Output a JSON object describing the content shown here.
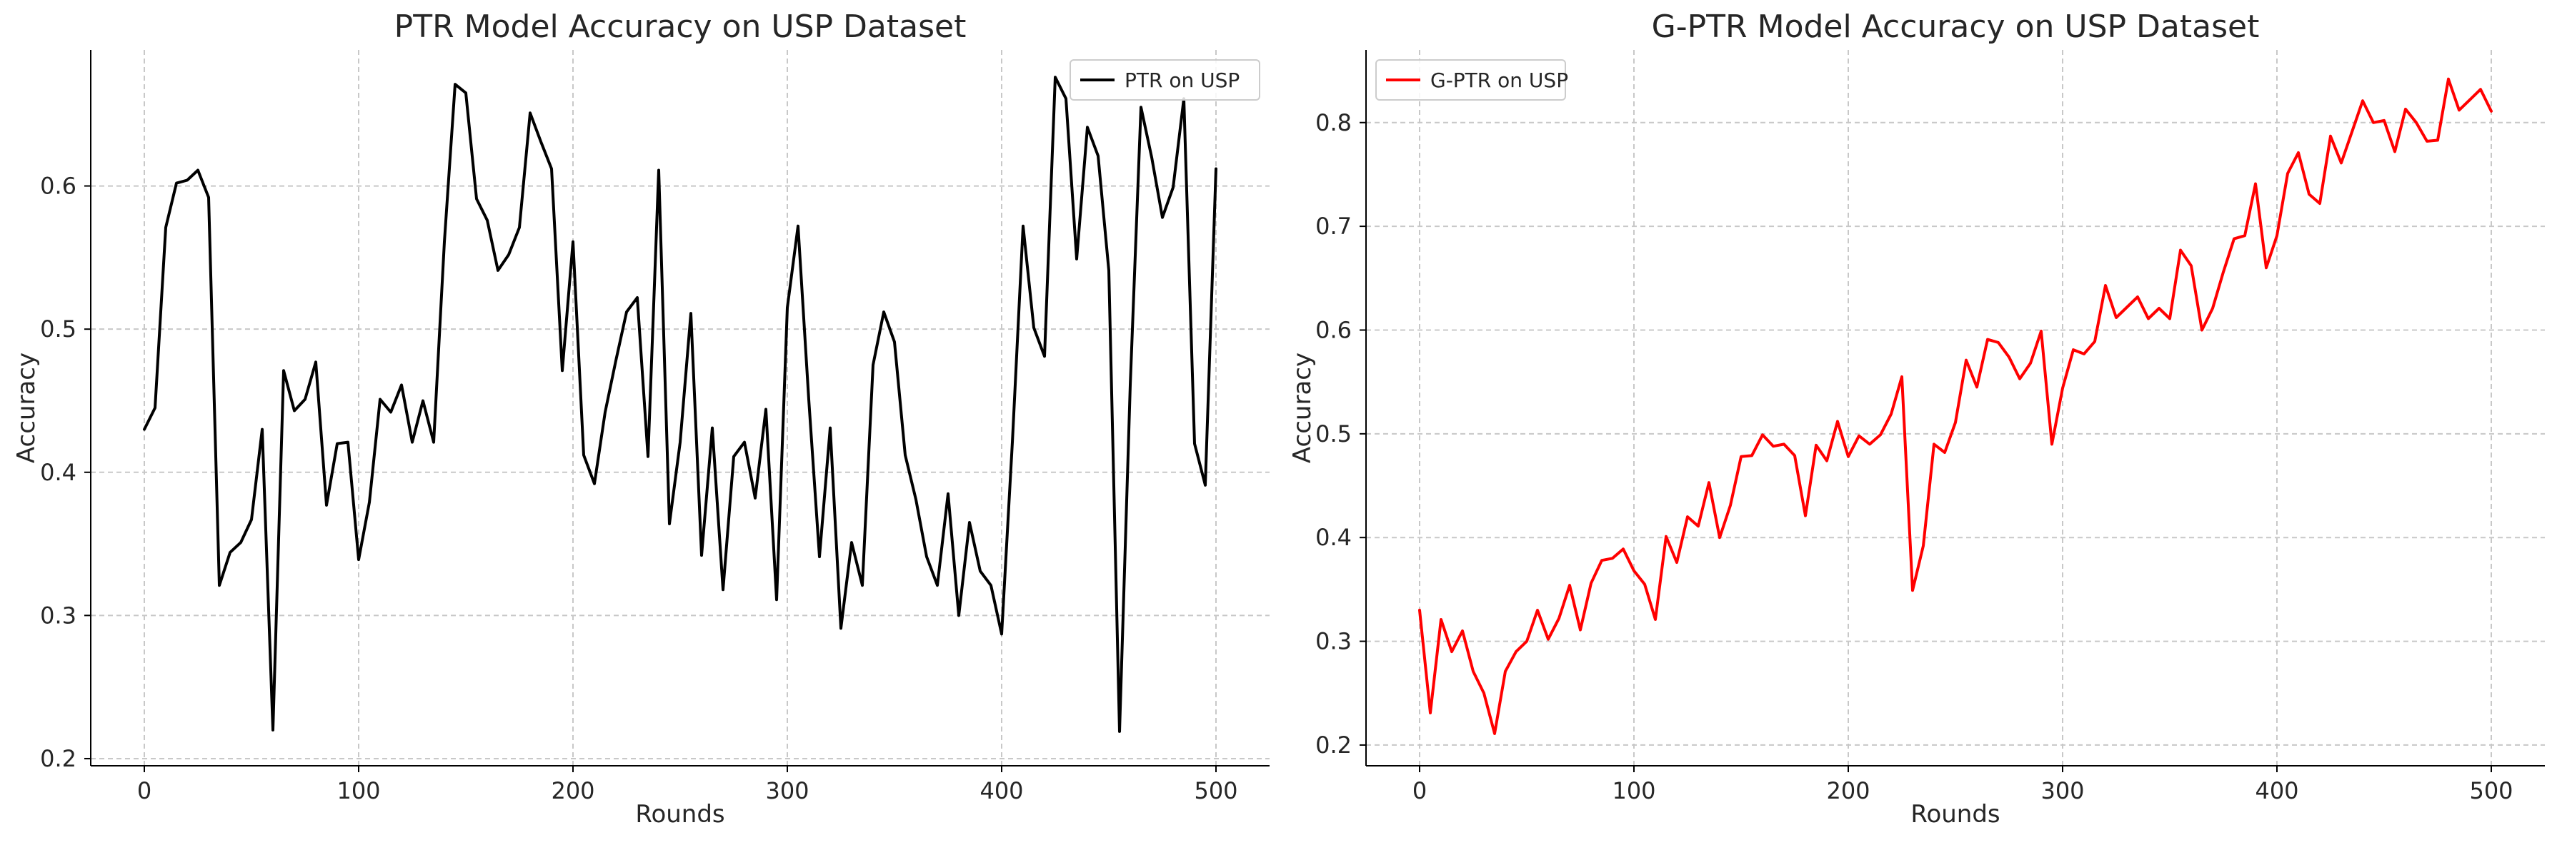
{
  "chart_data": [
    {
      "type": "line",
      "title": "PTR Model Accuracy on USP Dataset",
      "xlabel": "Rounds",
      "ylabel": "Accuracy",
      "xlim": [
        -25,
        525
      ],
      "ylim": [
        0.195,
        0.695
      ],
      "xticks": [
        0,
        100,
        200,
        300,
        400,
        500
      ],
      "yticks": [
        0.2,
        0.3,
        0.4,
        0.5,
        0.6
      ],
      "ytick_labels": [
        "0.2",
        "0.3",
        "0.4",
        "0.5",
        "0.6"
      ],
      "grid": true,
      "legend": "top-right",
      "series": [
        {
          "name": "PTR on USP",
          "color": "#000000",
          "x": [
            0,
            5,
            10,
            15,
            20,
            25,
            30,
            35,
            40,
            45,
            50,
            55,
            60,
            65,
            70,
            75,
            80,
            85,
            90,
            95,
            100,
            105,
            110,
            115,
            120,
            125,
            130,
            135,
            140,
            145,
            150,
            155,
            160,
            165,
            170,
            175,
            180,
            185,
            190,
            195,
            200,
            205,
            210,
            215,
            220,
            225,
            230,
            235,
            240,
            245,
            250,
            255,
            260,
            265,
            270,
            275,
            280,
            285,
            290,
            295,
            300,
            305,
            310,
            315,
            320,
            325,
            330,
            335,
            340,
            345,
            350,
            355,
            360,
            365,
            370,
            375,
            380,
            385,
            390,
            395,
            400,
            405,
            410,
            415,
            420,
            425,
            430,
            435,
            440,
            445,
            450,
            455,
            460,
            465,
            470,
            475,
            480,
            485,
            490,
            495,
            500
          ],
          "y": [
            0.43,
            0.445,
            0.571,
            0.602,
            0.604,
            0.611,
            0.592,
            0.321,
            0.344,
            0.351,
            0.367,
            0.43,
            0.22,
            0.471,
            0.443,
            0.451,
            0.477,
            0.377,
            0.42,
            0.421,
            0.339,
            0.379,
            0.451,
            0.442,
            0.461,
            0.421,
            0.45,
            0.421,
            0.561,
            0.671,
            0.665,
            0.591,
            0.576,
            0.541,
            0.552,
            0.571,
            0.651,
            0.631,
            0.612,
            0.471,
            0.561,
            0.412,
            0.392,
            0.442,
            0.478,
            0.512,
            0.522,
            0.411,
            0.611,
            0.364,
            0.421,
            0.511,
            0.342,
            0.431,
            0.318,
            0.411,
            0.421,
            0.382,
            0.444,
            0.311,
            0.515,
            0.572,
            0.451,
            0.341,
            0.431,
            0.291,
            0.351,
            0.321,
            0.475,
            0.512,
            0.491,
            0.412,
            0.381,
            0.341,
            0.321,
            0.385,
            0.3,
            0.365,
            0.331,
            0.321,
            0.287,
            0.421,
            0.572,
            0.501,
            0.481,
            0.676,
            0.661,
            0.549,
            0.641,
            0.621,
            0.541,
            0.219,
            0.461,
            0.655,
            0.62,
            0.578,
            0.599,
            0.661,
            0.42,
            0.391,
            0.612
          ]
        }
      ]
    },
    {
      "type": "line",
      "title": "G-PTR Model Accuracy on USP Dataset",
      "xlabel": "Rounds",
      "ylabel": "Accuracy",
      "xlim": [
        -25,
        525
      ],
      "ylim": [
        0.18,
        0.87
      ],
      "xticks": [
        0,
        100,
        200,
        300,
        400,
        500
      ],
      "yticks": [
        0.2,
        0.3,
        0.4,
        0.5,
        0.6,
        0.7,
        0.8
      ],
      "ytick_labels": [
        "0.2",
        "0.3",
        "0.4",
        "0.5",
        "0.6",
        "0.7",
        "0.8"
      ],
      "grid": true,
      "legend": "top-left",
      "series": [
        {
          "name": "G-PTR on USP",
          "color": "#ff0000",
          "x": [
            0,
            5,
            10,
            15,
            20,
            25,
            30,
            35,
            40,
            45,
            50,
            55,
            60,
            65,
            70,
            75,
            80,
            85,
            90,
            95,
            100,
            105,
            110,
            115,
            120,
            125,
            130,
            135,
            140,
            145,
            150,
            155,
            160,
            165,
            170,
            175,
            180,
            185,
            190,
            195,
            200,
            205,
            210,
            215,
            220,
            225,
            230,
            235,
            240,
            245,
            250,
            255,
            260,
            265,
            270,
            275,
            280,
            285,
            290,
            295,
            300,
            305,
            310,
            315,
            320,
            325,
            330,
            335,
            340,
            345,
            350,
            355,
            360,
            365,
            370,
            375,
            380,
            385,
            390,
            395,
            400,
            405,
            410,
            415,
            420,
            425,
            430,
            435,
            440,
            445,
            450,
            455,
            460,
            465,
            470,
            475,
            480,
            485,
            490,
            495,
            500
          ],
          "y": [
            0.33,
            0.231,
            0.321,
            0.29,
            0.31,
            0.271,
            0.25,
            0.211,
            0.271,
            0.29,
            0.3,
            0.33,
            0.302,
            0.322,
            0.354,
            0.311,
            0.356,
            0.378,
            0.38,
            0.389,
            0.368,
            0.355,
            0.321,
            0.401,
            0.376,
            0.42,
            0.411,
            0.453,
            0.4,
            0.431,
            0.478,
            0.479,
            0.499,
            0.488,
            0.49,
            0.479,
            0.421,
            0.489,
            0.474,
            0.512,
            0.478,
            0.498,
            0.49,
            0.499,
            0.519,
            0.555,
            0.349,
            0.392,
            0.49,
            0.482,
            0.511,
            0.571,
            0.545,
            0.591,
            0.588,
            0.574,
            0.553,
            0.568,
            0.599,
            0.49,
            0.544,
            0.581,
            0.577,
            0.589,
            0.643,
            0.612,
            0.622,
            0.632,
            0.611,
            0.621,
            0.611,
            0.677,
            0.662,
            0.6,
            0.621,
            0.656,
            0.688,
            0.691,
            0.741,
            0.66,
            0.691,
            0.751,
            0.771,
            0.731,
            0.722,
            0.787,
            0.761,
            0.791,
            0.821,
            0.8,
            0.802,
            0.772,
            0.813,
            0.8,
            0.782,
            0.783,
            0.842,
            0.812,
            0.822,
            0.832,
            0.811
          ]
        }
      ]
    }
  ]
}
